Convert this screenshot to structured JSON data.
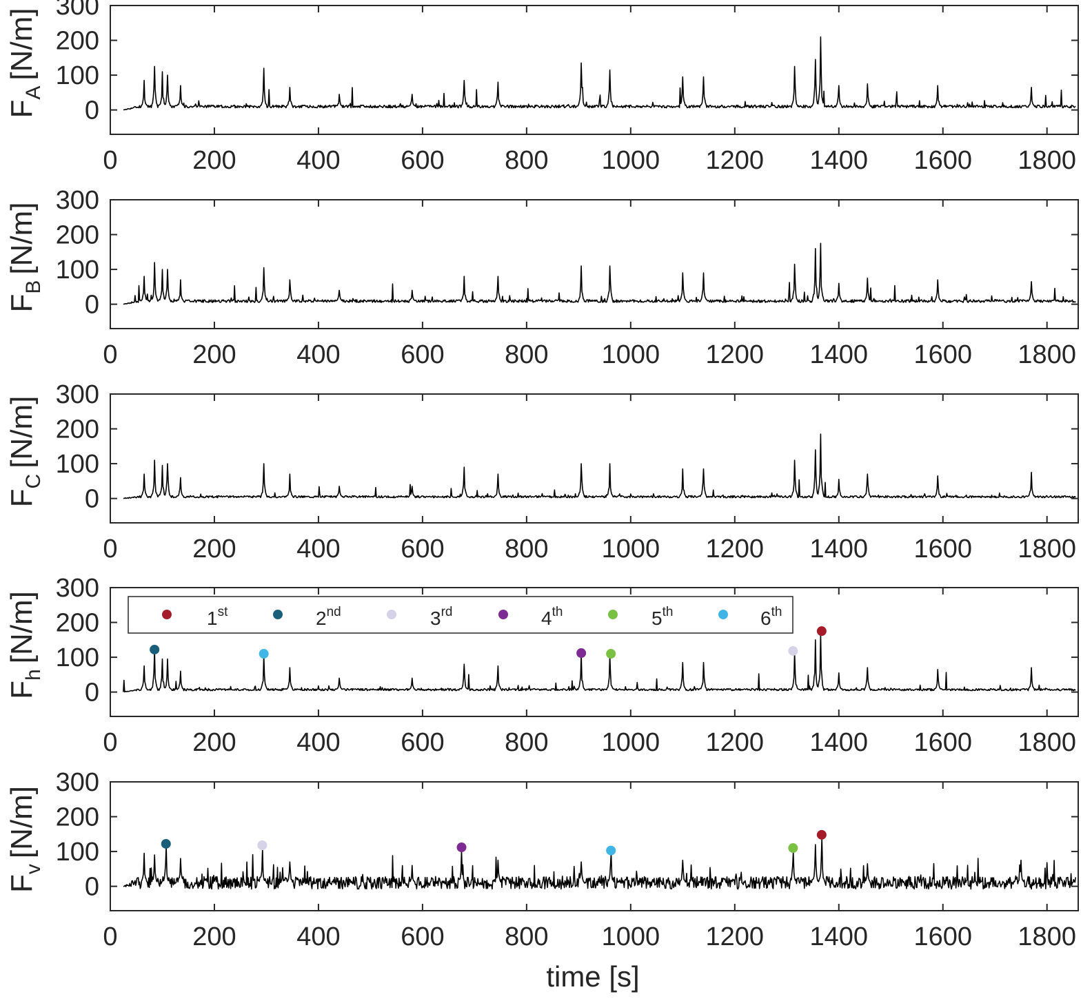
{
  "figure": {
    "xlabel": "time [s]"
  },
  "chart_data": [
    {
      "type": "line",
      "ylabel": {
        "main": "F",
        "sub": "A",
        "unit": "[N/m]"
      },
      "xlim": [
        0,
        1860
      ],
      "ylim": [
        -70,
        300
      ],
      "xticks": [
        0,
        200,
        400,
        600,
        800,
        1000,
        1200,
        1400,
        1600,
        1800
      ],
      "yticks": [
        0,
        100,
        200,
        300
      ],
      "series": [
        {
          "name": "F_A",
          "color": "#000000",
          "baseline": 10,
          "noise": 4,
          "peaks": [
            [
              65,
              85
            ],
            [
              85,
              125
            ],
            [
              100,
              110
            ],
            [
              110,
              100
            ],
            [
              135,
              70
            ],
            [
              295,
              120
            ],
            [
              345,
              65
            ],
            [
              440,
              45
            ],
            [
              580,
              45
            ],
            [
              680,
              85
            ],
            [
              745,
              80
            ],
            [
              905,
              135
            ],
            [
              960,
              115
            ],
            [
              1100,
              95
            ],
            [
              1140,
              95
            ],
            [
              1315,
              125
            ],
            [
              1355,
              145
            ],
            [
              1365,
              210
            ],
            [
              1400,
              70
            ],
            [
              1455,
              75
            ],
            [
              1590,
              70
            ],
            [
              1770,
              65
            ]
          ]
        }
      ]
    },
    {
      "type": "line",
      "ylabel": {
        "main": "F",
        "sub": "B",
        "unit": "[N/m]"
      },
      "xlim": [
        0,
        1860
      ],
      "ylim": [
        -70,
        300
      ],
      "xticks": [
        0,
        200,
        400,
        600,
        800,
        1000,
        1200,
        1400,
        1600,
        1800
      ],
      "yticks": [
        0,
        100,
        200,
        300
      ],
      "series": [
        {
          "name": "F_B",
          "color": "#000000",
          "baseline": 9,
          "noise": 4,
          "peaks": [
            [
              65,
              80
            ],
            [
              85,
              120
            ],
            [
              100,
              100
            ],
            [
              110,
              100
            ],
            [
              135,
              70
            ],
            [
              295,
              105
            ],
            [
              345,
              70
            ],
            [
              440,
              40
            ],
            [
              580,
              40
            ],
            [
              680,
              80
            ],
            [
              745,
              80
            ],
            [
              905,
              110
            ],
            [
              960,
              110
            ],
            [
              1100,
              90
            ],
            [
              1140,
              90
            ],
            [
              1315,
              115
            ],
            [
              1355,
              160
            ],
            [
              1365,
              175
            ],
            [
              1400,
              60
            ],
            [
              1455,
              75
            ],
            [
              1590,
              70
            ],
            [
              1770,
              65
            ]
          ]
        }
      ]
    },
    {
      "type": "line",
      "ylabel": {
        "main": "F",
        "sub": "C",
        "unit": "[N/m]"
      },
      "xlim": [
        0,
        1860
      ],
      "ylim": [
        -70,
        300
      ],
      "xticks": [
        0,
        200,
        400,
        600,
        800,
        1000,
        1200,
        1400,
        1600,
        1800
      ],
      "yticks": [
        0,
        100,
        200,
        300
      ],
      "series": [
        {
          "name": "F_C",
          "color": "#000000",
          "baseline": 5,
          "noise": 3,
          "peaks": [
            [
              65,
              70
            ],
            [
              85,
              110
            ],
            [
              100,
              95
            ],
            [
              110,
              100
            ],
            [
              135,
              60
            ],
            [
              295,
              100
            ],
            [
              345,
              70
            ],
            [
              440,
              35
            ],
            [
              580,
              35
            ],
            [
              680,
              90
            ],
            [
              745,
              70
            ],
            [
              905,
              100
            ],
            [
              960,
              100
            ],
            [
              1100,
              85
            ],
            [
              1140,
              85
            ],
            [
              1315,
              110
            ],
            [
              1355,
              140
            ],
            [
              1365,
              185
            ],
            [
              1400,
              55
            ],
            [
              1455,
              70
            ],
            [
              1590,
              65
            ],
            [
              1770,
              75
            ]
          ]
        }
      ]
    },
    {
      "type": "line",
      "ylabel": {
        "main": "F",
        "sub": "h",
        "unit": "[N/m]"
      },
      "xlim": [
        0,
        1860
      ],
      "ylim": [
        -70,
        300
      ],
      "xticks": [
        0,
        200,
        400,
        600,
        800,
        1000,
        1200,
        1400,
        1600,
        1800
      ],
      "yticks": [
        0,
        100,
        200,
        300
      ],
      "legend": {
        "entries": [
          {
            "label": "1",
            "sup": "st",
            "color": "#a61b29"
          },
          {
            "label": "2",
            "sup": "nd",
            "color": "#1a5f7a"
          },
          {
            "label": "3",
            "sup": "rd",
            "color": "#d6d2e8"
          },
          {
            "label": "4",
            "sup": "th",
            "color": "#7e2a93"
          },
          {
            "label": "5",
            "sup": "th",
            "color": "#7ac143"
          },
          {
            "label": "6",
            "sup": "th",
            "color": "#41b6e6"
          }
        ]
      },
      "markers": [
        {
          "rank": "1st",
          "x": 1367,
          "y": 175,
          "color": "#a61b29"
        },
        {
          "rank": "2nd",
          "x": 85,
          "y": 122,
          "color": "#1a5f7a"
        },
        {
          "rank": "3rd",
          "x": 1312,
          "y": 118,
          "color": "#d6d2e8"
        },
        {
          "rank": "4th",
          "x": 905,
          "y": 112,
          "color": "#7e2a93"
        },
        {
          "rank": "5th",
          "x": 962,
          "y": 110,
          "color": "#7ac143"
        },
        {
          "rank": "6th",
          "x": 295,
          "y": 110,
          "color": "#41b6e6"
        }
      ],
      "series": [
        {
          "name": "F_h",
          "color": "#000000",
          "baseline": 7,
          "noise": 3,
          "peaks": [
            [
              65,
              75
            ],
            [
              85,
              120
            ],
            [
              100,
              95
            ],
            [
              110,
              95
            ],
            [
              135,
              60
            ],
            [
              295,
              105
            ],
            [
              345,
              70
            ],
            [
              440,
              40
            ],
            [
              580,
              40
            ],
            [
              680,
              80
            ],
            [
              745,
              75
            ],
            [
              905,
              110
            ],
            [
              960,
              105
            ],
            [
              1100,
              85
            ],
            [
              1140,
              85
            ],
            [
              1315,
              115
            ],
            [
              1355,
              150
            ],
            [
              1365,
              170
            ],
            [
              1400,
              55
            ],
            [
              1455,
              70
            ],
            [
              1590,
              65
            ],
            [
              1770,
              70
            ]
          ]
        }
      ]
    },
    {
      "type": "line",
      "ylabel": {
        "main": "F",
        "sub": "v",
        "unit": "[N/m]"
      },
      "xlim": [
        0,
        1860
      ],
      "ylim": [
        -70,
        300
      ],
      "xticks": [
        0,
        200,
        400,
        600,
        800,
        1000,
        1200,
        1400,
        1600,
        1800
      ],
      "yticks": [
        0,
        100,
        200,
        300
      ],
      "markers": [
        {
          "rank": "1st",
          "x": 1367,
          "y": 148,
          "color": "#a61b29"
        },
        {
          "rank": "2nd",
          "x": 107,
          "y": 122,
          "color": "#1a5f7a"
        },
        {
          "rank": "3rd",
          "x": 292,
          "y": 118,
          "color": "#d6d2e8"
        },
        {
          "rank": "4th",
          "x": 675,
          "y": 112,
          "color": "#7e2a93"
        },
        {
          "rank": "5th",
          "x": 1312,
          "y": 110,
          "color": "#7ac143"
        },
        {
          "rank": "6th",
          "x": 962,
          "y": 103,
          "color": "#41b6e6"
        }
      ],
      "series": [
        {
          "name": "F_v",
          "color": "#000000",
          "baseline": 10,
          "noise": 18,
          "peaks": [
            [
              65,
              95
            ],
            [
              85,
              90
            ],
            [
              107,
              115
            ],
            [
              135,
              80
            ],
            [
              292,
              110
            ],
            [
              345,
              70
            ],
            [
              580,
              60
            ],
            [
              675,
              105
            ],
            [
              745,
              75
            ],
            [
              905,
              70
            ],
            [
              962,
              95
            ],
            [
              1100,
              75
            ],
            [
              1312,
              100
            ],
            [
              1355,
              120
            ],
            [
              1367,
              140
            ],
            [
              1455,
              65
            ],
            [
              1750,
              75
            ]
          ]
        }
      ]
    }
  ]
}
